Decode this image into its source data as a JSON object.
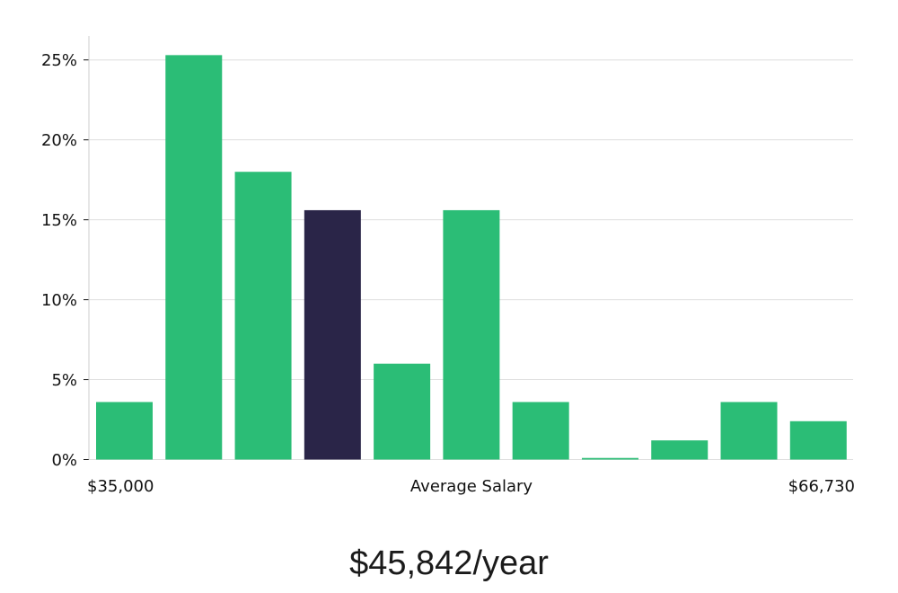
{
  "chart_data": {
    "type": "bar",
    "title": "",
    "xlabel": "Average Salary",
    "ylabel": "",
    "x_range_labels": {
      "min": "$35,000",
      "max": "$66,730"
    },
    "values": [
      3.6,
      25.3,
      18.0,
      15.6,
      6.0,
      15.6,
      3.6,
      0.1,
      1.2,
      3.6,
      2.4
    ],
    "highlight_index": 3,
    "ylim": [
      0,
      26.5
    ],
    "yticks": [
      0,
      5,
      10,
      15,
      20,
      25
    ],
    "ytick_labels": [
      "0%",
      "5%",
      "10%",
      "15%",
      "20%",
      "25%"
    ],
    "grid": true,
    "colors": {
      "bar": "#2bbd76",
      "highlight": "#2a2548",
      "grid": "#dddddd",
      "axis": "#cccccc"
    }
  },
  "summary": {
    "salary": "$45,842/year"
  }
}
